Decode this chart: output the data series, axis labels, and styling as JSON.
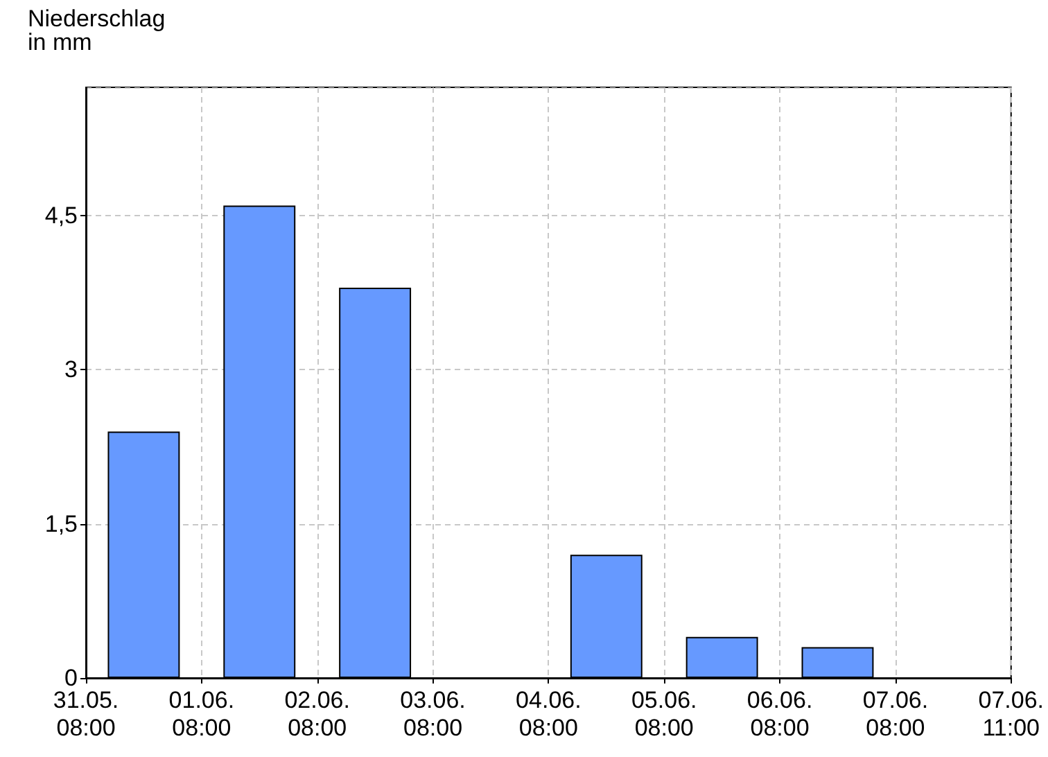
{
  "chart_data": {
    "type": "bar",
    "ylabel": "Niederschlag\nin mm",
    "x": [
      "--05-31T20:00",
      "--06-01T20:00",
      "--06-02T20:00",
      "--06-03T20:00",
      "--06-04T20:00",
      "--06-05T20:00",
      "--06-06T20:00"
    ],
    "values": [
      2.4,
      4.6,
      3.8,
      null,
      1.2,
      0.4,
      0.3
    ],
    "color": "#6699ff",
    "xlim": [
      "--05-31T08:00",
      "--06-08T08:00"
    ],
    "xticks": [
      {
        "value": "--05-31T08:00",
        "label": "31.05.\n08:00"
      },
      {
        "value": "--06-01T08:00",
        "label": "01.06.\n08:00"
      },
      {
        "value": "--06-02T08:00",
        "label": "02.06.\n08:00"
      },
      {
        "value": "--06-03T08:00",
        "label": "03.06.\n08:00"
      },
      {
        "value": "--06-04T08:00",
        "label": "04.06.\n08:00"
      },
      {
        "value": "--06-05T08:00",
        "label": "05.06.\n08:00"
      },
      {
        "value": "--06-06T08:00",
        "label": "06.06.\n08:00"
      },
      {
        "value": "--06-07T08:00",
        "label": "07.06.\n08:00"
      },
      {
        "value": "--06-08T08:00",
        "label": "07.06.\n11:00"
      }
    ],
    "ylim": [
      0,
      5.75
    ],
    "yticks": [
      0,
      {
        "value": 1.5,
        "label": "1,5"
      },
      3,
      {
        "value": 4.5,
        "label": "4,5"
      }
    ],
    "grid": true
  }
}
